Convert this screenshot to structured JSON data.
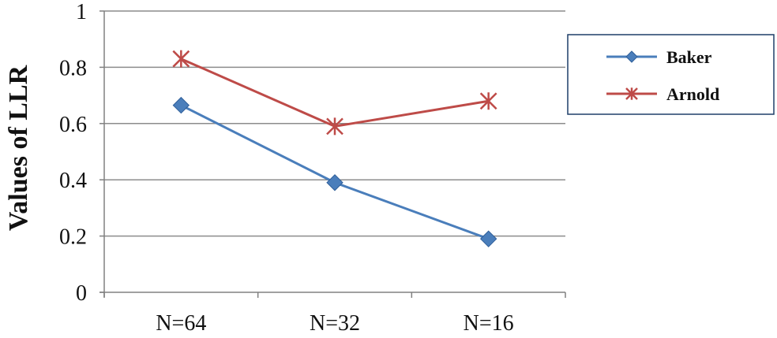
{
  "chart_data": {
    "type": "line",
    "title": "",
    "xlabel": "",
    "ylabel": "Values of LLR",
    "categories": [
      "N=64",
      "N=32",
      "N=16"
    ],
    "ylim": [
      0,
      1
    ],
    "yticks": [
      "0",
      "0.2",
      "0.4",
      "0.6",
      "0.8",
      "1"
    ],
    "grid": true,
    "legend_position": "right",
    "series": [
      {
        "name": "Baker",
        "values": [
          0.665,
          0.39,
          0.19
        ],
        "color": "#4A7EBB",
        "marker": "diamond"
      },
      {
        "name": "Arnold",
        "values": [
          0.83,
          0.59,
          0.68
        ],
        "color": "#BE4B48",
        "marker": "asterisk"
      }
    ]
  }
}
